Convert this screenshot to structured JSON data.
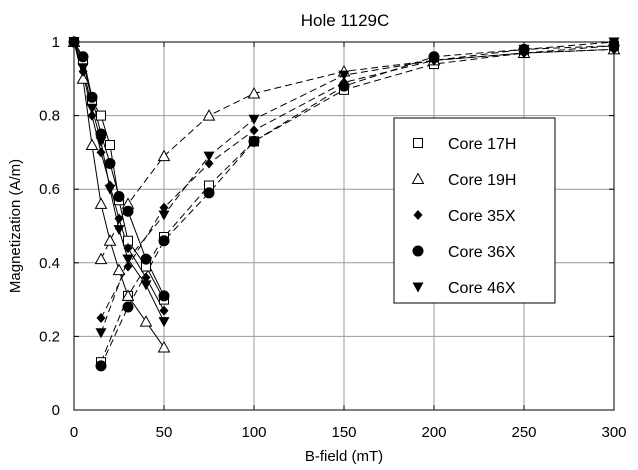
{
  "chart_data": {
    "type": "scatter",
    "title": "Hole 1129C",
    "xlabel": "B-field (mT)",
    "ylabel": "Magnetization (A/m)",
    "xlim": [
      0,
      300
    ],
    "ylim": [
      0,
      1
    ],
    "x_ticks": [
      0,
      50,
      100,
      150,
      200,
      250,
      300
    ],
    "y_ticks": [
      0,
      0.2,
      0.4,
      0.6,
      0.8,
      1
    ],
    "x_tick_labels": [
      "0",
      "50",
      "100",
      "150",
      "200",
      "250",
      "300"
    ],
    "y_tick_labels": [
      "0",
      "0.2",
      "0.4",
      "0.6",
      "0.8",
      "1"
    ],
    "grid": true,
    "legend_position": "right",
    "series": [
      {
        "name": "Core 17H",
        "marker": "open-square",
        "af_demag": {
          "x": [
            0,
            5,
            10,
            15,
            20,
            25,
            30,
            40,
            50
          ],
          "y": [
            1.0,
            0.95,
            0.84,
            0.8,
            0.72,
            0.57,
            0.46,
            0.39,
            0.3
          ]
        },
        "irm": {
          "x": [
            15,
            30,
            50,
            75,
            100,
            150,
            200,
            250,
            300
          ],
          "y": [
            0.13,
            0.31,
            0.47,
            0.61,
            0.73,
            0.87,
            0.94,
            0.97,
            0.99
          ]
        }
      },
      {
        "name": "Core 19H",
        "marker": "open-triangle",
        "af_demag": {
          "x": [
            0,
            5,
            10,
            15,
            20,
            25,
            30,
            40,
            50
          ],
          "y": [
            1.0,
            0.9,
            0.72,
            0.56,
            0.46,
            0.38,
            0.31,
            0.24,
            0.17
          ]
        },
        "irm": {
          "x": [
            15,
            30,
            50,
            75,
            100,
            150,
            200,
            250,
            300
          ],
          "y": [
            0.41,
            0.56,
            0.69,
            0.8,
            0.86,
            0.92,
            0.95,
            0.97,
            0.98
          ]
        }
      },
      {
        "name": "Core 35X",
        "marker": "filled-diamond",
        "af_demag": {
          "x": [
            0,
            5,
            10,
            15,
            20,
            25,
            30,
            40,
            50
          ],
          "y": [
            1.0,
            0.92,
            0.8,
            0.7,
            0.61,
            0.52,
            0.44,
            0.36,
            0.27
          ]
        },
        "irm": {
          "x": [
            15,
            30,
            50,
            75,
            100,
            150,
            200,
            250,
            300
          ],
          "y": [
            0.25,
            0.39,
            0.55,
            0.67,
            0.76,
            0.89,
            0.95,
            0.97,
            0.98
          ]
        }
      },
      {
        "name": "Core 36X",
        "marker": "filled-circle",
        "af_demag": {
          "x": [
            0,
            5,
            10,
            15,
            20,
            25,
            30,
            40,
            50
          ],
          "y": [
            1.0,
            0.96,
            0.85,
            0.75,
            0.67,
            0.58,
            0.54,
            0.41,
            0.31
          ]
        },
        "irm": {
          "x": [
            15,
            30,
            50,
            75,
            100,
            150,
            200,
            250,
            300
          ],
          "y": [
            0.12,
            0.28,
            0.46,
            0.59,
            0.73,
            0.88,
            0.96,
            0.98,
            0.99
          ]
        }
      },
      {
        "name": "Core 46X",
        "marker": "filled-triangle-down",
        "af_demag": {
          "x": [
            0,
            5,
            10,
            15,
            20,
            25,
            30,
            40,
            50
          ],
          "y": [
            1.0,
            0.93,
            0.82,
            0.73,
            0.6,
            0.49,
            0.41,
            0.34,
            0.24
          ]
        },
        "irm": {
          "x": [
            15,
            30,
            50,
            75,
            100,
            150,
            200,
            250,
            300
          ],
          "y": [
            0.21,
            0.41,
            0.53,
            0.69,
            0.79,
            0.91,
            0.95,
            0.98,
            1.0
          ]
        }
      }
    ]
  }
}
